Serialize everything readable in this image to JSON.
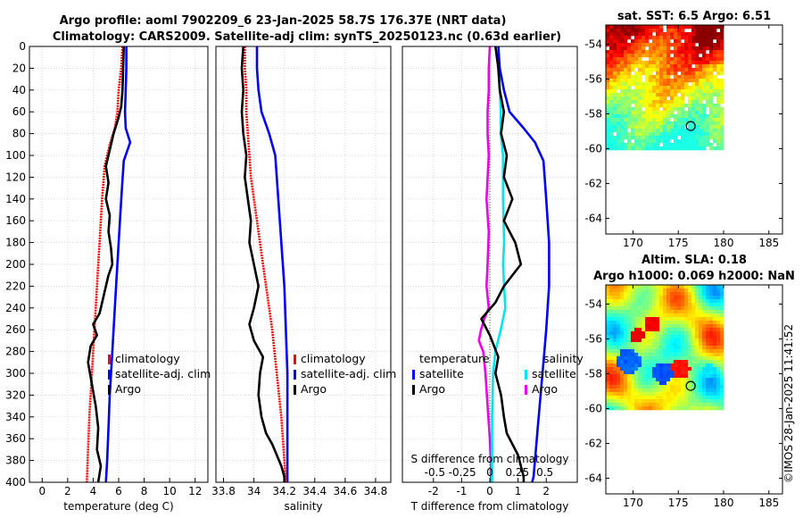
{
  "title": {
    "line1": "Argo profile: aoml 7902209_6 23-Jan-2025 58.7S 176.37E (NRT data)",
    "line2": "Climatology: CARS2009. Satellite-adj clim: synTS_20250123.nc (0.63d earlier)"
  },
  "colors": {
    "climatology": "#ff0000",
    "satellite": "#0000ff",
    "argo": "#000000",
    "sat_temp_diff": "#0000ff",
    "sal_diff_sat": "#00e5ee",
    "sal_diff_argo": "#ee00ee"
  },
  "chart_data": [
    {
      "id": "temperature",
      "type": "line",
      "xlabel": "temperature (deg C)",
      "xlim": [
        -1,
        13
      ],
      "ylim": [
        400,
        0
      ],
      "xticks": [
        0,
        2,
        4,
        6,
        8,
        10,
        12
      ],
      "yticks": [
        0,
        20,
        40,
        60,
        80,
        100,
        120,
        140,
        160,
        180,
        200,
        220,
        240,
        260,
        280,
        300,
        320,
        340,
        360,
        380,
        400
      ],
      "legend": [
        "climatology",
        "satellite-adj. clim",
        "Argo"
      ],
      "series": [
        {
          "name": "climatology",
          "x": [
            6.3,
            6.2,
            6.0,
            5.9,
            5.7,
            5.3,
            4.9,
            4.7,
            4.6,
            4.5,
            4.4,
            4.3,
            4.2,
            4.1,
            4.0,
            3.9,
            3.8,
            3.7,
            3.6,
            3.5
          ],
          "y": [
            0,
            20,
            40,
            60,
            75,
            90,
            110,
            140,
            160,
            180,
            200,
            220,
            240,
            260,
            280,
            300,
            320,
            340,
            370,
            400
          ]
        },
        {
          "name": "satellite-adj. clim",
          "x": [
            6.6,
            6.6,
            6.55,
            6.5,
            6.55,
            6.9,
            6.4,
            6.2,
            6.0,
            5.8,
            5.6,
            5.5,
            5.3,
            5.2,
            5.1,
            5.0
          ],
          "y": [
            0,
            20,
            40,
            60,
            75,
            88,
            105,
            140,
            180,
            220,
            260,
            280,
            320,
            350,
            380,
            400
          ]
        },
        {
          "name": "Argo",
          "x": [
            6.4,
            6.35,
            6.3,
            6.2,
            6.0,
            5.6,
            5.3,
            5.0,
            5.2,
            5.0,
            5.3,
            5.2,
            5.4,
            5.5,
            5.2,
            5.0,
            4.8,
            4.5,
            4.0,
            4.3,
            3.8,
            3.6,
            3.9,
            4.2,
            4.4,
            4.3,
            4.6,
            4.4
          ],
          "y": [
            0,
            20,
            40,
            55,
            65,
            80,
            95,
            110,
            125,
            140,
            155,
            170,
            185,
            200,
            210,
            220,
            230,
            245,
            255,
            265,
            275,
            290,
            310,
            330,
            350,
            370,
            385,
            400
          ]
        }
      ]
    },
    {
      "id": "salinity",
      "type": "line",
      "xlabel": "salinity",
      "xlim": [
        33.75,
        34.9
      ],
      "ylim": [
        400,
        0
      ],
      "xticks": [
        33.8,
        34,
        34.2,
        34.4,
        34.6,
        34.8
      ],
      "legend": [
        "climatology",
        "satellite-adj. clim",
        "Argo"
      ],
      "series": [
        {
          "name": "climatology",
          "x": [
            33.94,
            33.94,
            33.95,
            33.95,
            33.96,
            33.97,
            33.98,
            34.0,
            34.02,
            34.05,
            34.08,
            34.12,
            34.15,
            34.18,
            34.2,
            34.21
          ],
          "y": [
            0,
            20,
            40,
            60,
            80,
            100,
            120,
            140,
            160,
            190,
            220,
            260,
            300,
            340,
            380,
            400
          ]
        },
        {
          "name": "satellite-adj. clim",
          "x": [
            34.02,
            34.02,
            34.03,
            34.05,
            34.1,
            34.14,
            34.16,
            34.18,
            34.2,
            34.21,
            34.22,
            34.22,
            34.22
          ],
          "y": [
            0,
            20,
            40,
            60,
            80,
            100,
            140,
            180,
            220,
            260,
            300,
            360,
            400
          ]
        },
        {
          "name": "Argo",
          "x": [
            33.93,
            33.92,
            33.93,
            33.92,
            33.93,
            33.95,
            33.94,
            33.96,
            33.98,
            33.97,
            34.0,
            34.03,
            34.0,
            33.97,
            34.0,
            34.06,
            34.04,
            34.03,
            34.05,
            34.08,
            34.12,
            34.15,
            34.18,
            34.2,
            34.2
          ],
          "y": [
            0,
            20,
            40,
            60,
            80,
            100,
            120,
            140,
            160,
            180,
            200,
            220,
            240,
            255,
            270,
            285,
            300,
            320,
            340,
            355,
            365,
            375,
            385,
            395,
            400
          ]
        }
      ]
    },
    {
      "id": "differences",
      "type": "line",
      "xlabel": "T difference from climatology",
      "xlabel2": "S difference from climatology",
      "xlim": [
        -3.1,
        3.1
      ],
      "ylim": [
        400,
        0
      ],
      "xticks": [
        -2,
        -1,
        0,
        1,
        2
      ],
      "xticks2": [
        -0.5,
        -0.25,
        0,
        0.25,
        0.5
      ],
      "xtick2_labels": [
        "-0.5",
        "-0.25",
        "0",
        "0.25",
        "0.5"
      ],
      "legend_temp_title": "temperature",
      "legend_sal_title": "salinity",
      "legend_entries": [
        "satellite",
        "Argo",
        "satellite",
        "Argo"
      ],
      "series": [
        {
          "name": "satellite (temperature)",
          "x": [
            0.3,
            0.35,
            0.5,
            0.7,
            1.2,
            1.6,
            1.9,
            2.0,
            2.1,
            2.1,
            2.0,
            1.9,
            1.8,
            1.7,
            1.6,
            1.55,
            1.5
          ],
          "y": [
            0,
            20,
            40,
            60,
            75,
            88,
            105,
            140,
            180,
            220,
            260,
            290,
            320,
            350,
            380,
            395,
            400
          ]
        },
        {
          "name": "Argo (temperature)",
          "x": [
            0.2,
            0.3,
            0.35,
            0.5,
            0.4,
            0.6,
            0.5,
            0.8,
            0.5,
            0.9,
            1.1,
            0.5,
            0.2,
            -0.3,
            0.0,
            0.3,
            0.2,
            0.4,
            0.5,
            0.6,
            0.8,
            1.0,
            1.1,
            1.2,
            1.2
          ],
          "y": [
            0,
            20,
            40,
            60,
            80,
            100,
            120,
            140,
            160,
            180,
            200,
            220,
            235,
            250,
            265,
            285,
            300,
            320,
            340,
            355,
            365,
            375,
            385,
            395,
            400
          ]
        },
        {
          "name": "satellite (salinity)",
          "x": [
            0.08,
            0.08,
            0.09,
            0.1,
            0.1,
            0.12,
            0.12,
            0.13,
            0.12,
            0.13,
            0.14,
            0.1,
            0.05,
            0.03,
            0.02,
            0.02,
            0.02
          ],
          "y": [
            0,
            20,
            40,
            60,
            80,
            100,
            140,
            180,
            200,
            220,
            240,
            260,
            280,
            300,
            340,
            380,
            400
          ]
        },
        {
          "name": "Argo (salinity)",
          "x": [
            0.0,
            -0.01,
            -0.01,
            -0.02,
            -0.02,
            -0.01,
            -0.03,
            -0.01,
            -0.02,
            -0.03,
            -0.01,
            -0.05,
            -0.08,
            -0.1,
            -0.06,
            -0.04,
            -0.02,
            0.0,
            0.01,
            0.01
          ],
          "y": [
            0,
            20,
            40,
            60,
            80,
            100,
            140,
            170,
            200,
            220,
            240,
            250,
            260,
            270,
            280,
            300,
            330,
            360,
            385,
            400
          ]
        }
      ]
    },
    {
      "id": "sst-map",
      "type": "heatmap",
      "title": "sat. SST: 6.5 Argo: 6.51",
      "xlim": [
        167,
        186.5
      ],
      "ylim": [
        -64.9,
        -52.9
      ],
      "xticks": [
        170,
        175,
        180,
        185
      ],
      "yticks": [
        -54,
        -56,
        -58,
        -60,
        -62,
        -64
      ],
      "argo_marker": {
        "lon": 176.37,
        "lat": -58.7
      }
    },
    {
      "id": "sla-map",
      "type": "heatmap",
      "title": "Altim. SLA: 0.18",
      "subtitle": "Argo h1000: 0.069 h2000: NaN",
      "xlim": [
        167,
        186.5
      ],
      "ylim": [
        -64.9,
        -52.9
      ],
      "xticks": [
        170,
        175,
        180,
        185
      ],
      "yticks": [
        -54,
        -56,
        -58,
        -60,
        -62,
        -64
      ],
      "argo_marker": {
        "lon": 176.37,
        "lat": -58.7
      }
    }
  ],
  "credit": "©IMOS 28-Jan-2025 11:41:52"
}
